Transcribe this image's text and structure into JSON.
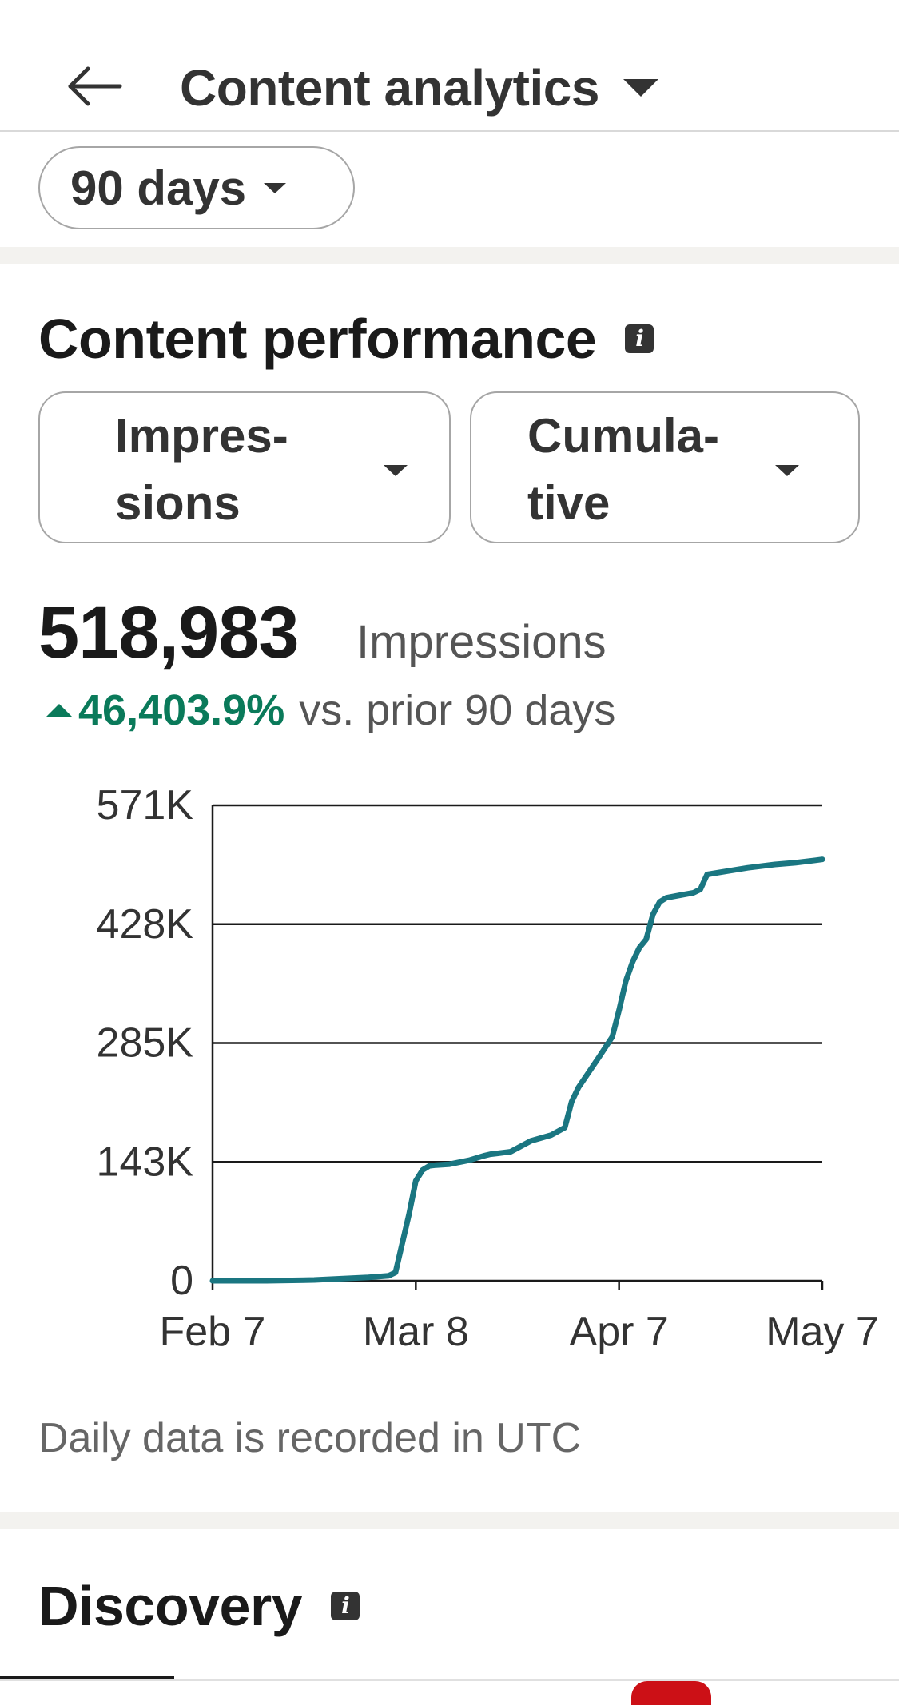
{
  "header": {
    "title": "Content analytics",
    "back_icon": "arrow-left-icon",
    "dropdown_icon": "caret-down-icon"
  },
  "filters": {
    "range_label": "90 days"
  },
  "content_performance": {
    "title": "Content performance",
    "metric_select": [
      "Impres-",
      "sions"
    ],
    "mode_select": [
      "Cumula-",
      "tive"
    ],
    "total_value": "518,983",
    "total_label": "Impressions",
    "change_value": "46,403.9%",
    "change_text": "vs. prior 90 days",
    "change_color": "#0a7a5a",
    "footnote": "Daily data is recorded in UTC"
  },
  "discovery": {
    "title": "Discovery"
  },
  "colors": {
    "line": "#1a7681",
    "positive": "#0a7a5a",
    "badge": "#cc1016"
  },
  "chart_data": {
    "type": "line",
    "title": "",
    "xlabel": "",
    "ylabel": "",
    "grid": true,
    "x_ticks": [
      "Feb 7",
      "Mar 8",
      "Apr 7",
      "May 7"
    ],
    "y_ticks": [
      "571K",
      "428K",
      "285K",
      "143K",
      "0"
    ],
    "ylim": [
      0,
      571000
    ],
    "xlim": [
      "2024-02-07",
      "2024-05-07"
    ],
    "series": [
      {
        "name": "",
        "x": [
          "2024-02-07",
          "2024-02-15",
          "2024-02-22",
          "2024-03-01",
          "2024-03-04",
          "2024-03-05",
          "2024-03-06",
          "2024-03-07",
          "2024-03-08",
          "2024-03-09",
          "2024-03-10",
          "2024-03-11",
          "2024-03-13",
          "2024-03-16",
          "2024-03-18",
          "2024-03-19",
          "2024-03-20",
          "2024-03-22",
          "2024-03-25",
          "2024-03-28",
          "2024-03-30",
          "2024-03-31",
          "2024-04-01",
          "2024-04-02",
          "2024-04-04",
          "2024-04-06",
          "2024-04-07",
          "2024-04-08",
          "2024-04-09",
          "2024-04-10",
          "2024-04-11",
          "2024-04-12",
          "2024-04-13",
          "2024-04-14",
          "2024-04-16",
          "2024-04-18",
          "2024-04-19",
          "2024-04-20",
          "2024-04-23",
          "2024-04-26",
          "2024-04-30",
          "2024-05-03",
          "2024-05-06",
          "2024-05-07"
        ],
        "y": [
          0,
          0,
          1000,
          4000,
          6000,
          10000,
          45000,
          80000,
          120000,
          133000,
          138000,
          139000,
          140000,
          145000,
          150000,
          152000,
          153000,
          155000,
          168000,
          175000,
          184000,
          215000,
          232000,
          244000,
          268000,
          293000,
          325000,
          360000,
          383000,
          400000,
          410000,
          440000,
          455000,
          460000,
          463000,
          466000,
          470000,
          488000,
          492000,
          496000,
          500000,
          502000,
          505000,
          506000
        ]
      }
    ]
  }
}
